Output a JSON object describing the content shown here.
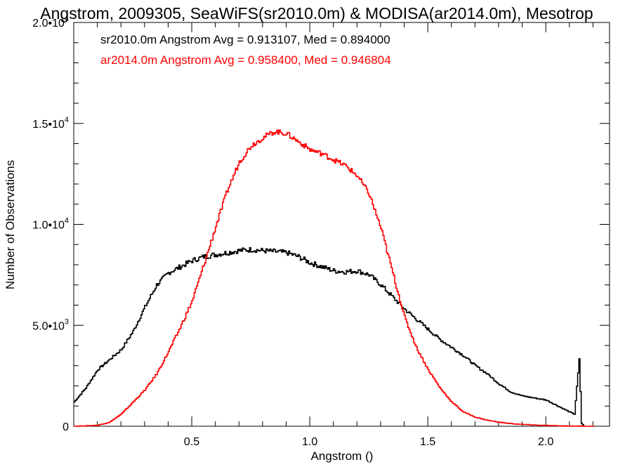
{
  "chart_data": {
    "type": "line",
    "title": "Angstrom, 2009305, SeaWiFS(sr2010.0m) & MODISA(ar2014.0m), Mesotrop",
    "xlabel": "Angstrom ()",
    "ylabel": "Number of Observations",
    "xlim": [
      0.0,
      2.27
    ],
    "ylim": [
      0,
      20000
    ],
    "x_ticks": [
      {
        "value": 0.5,
        "label": "0.5"
      },
      {
        "value": 1.0,
        "label": "1.0"
      },
      {
        "value": 1.5,
        "label": "1.5"
      },
      {
        "value": 2.0,
        "label": "2.0"
      }
    ],
    "y_ticks": [
      {
        "value": 0,
        "mant": "0",
        "exp": ""
      },
      {
        "value": 5000,
        "mant": "5.0•10",
        "exp": "3"
      },
      {
        "value": 10000,
        "mant": "1.0•10",
        "exp": "4"
      },
      {
        "value": 15000,
        "mant": "1.5•10",
        "exp": "4"
      },
      {
        "value": 20000,
        "mant": "2.0•10",
        "exp": "4"
      }
    ],
    "legend_placement": "top-left",
    "grid": false,
    "series": [
      {
        "legend": "sr2010.0m Angstrom Avg = 0.913107, Med = 0.894000",
        "color": "#000000",
        "points": [
          [
            0.0,
            1200
          ],
          [
            0.05,
            1900
          ],
          [
            0.1,
            2800
          ],
          [
            0.15,
            3300
          ],
          [
            0.2,
            3800
          ],
          [
            0.25,
            4700
          ],
          [
            0.3,
            5900
          ],
          [
            0.35,
            7000
          ],
          [
            0.4,
            7600
          ],
          [
            0.45,
            7900
          ],
          [
            0.5,
            8200
          ],
          [
            0.55,
            8400
          ],
          [
            0.6,
            8500
          ],
          [
            0.65,
            8600
          ],
          [
            0.7,
            8700
          ],
          [
            0.75,
            8750
          ],
          [
            0.8,
            8700
          ],
          [
            0.85,
            8650
          ],
          [
            0.9,
            8600
          ],
          [
            0.95,
            8400
          ],
          [
            1.0,
            8100
          ],
          [
            1.05,
            7900
          ],
          [
            1.1,
            7700
          ],
          [
            1.15,
            7650
          ],
          [
            1.2,
            7700
          ],
          [
            1.25,
            7500
          ],
          [
            1.3,
            7000
          ],
          [
            1.35,
            6400
          ],
          [
            1.4,
            5800
          ],
          [
            1.45,
            5300
          ],
          [
            1.5,
            4800
          ],
          [
            1.55,
            4300
          ],
          [
            1.6,
            3900
          ],
          [
            1.65,
            3500
          ],
          [
            1.7,
            3000
          ],
          [
            1.75,
            2600
          ],
          [
            1.8,
            2100
          ],
          [
            1.85,
            1700
          ],
          [
            1.9,
            1500
          ],
          [
            1.95,
            1400
          ],
          [
            2.0,
            1300
          ],
          [
            2.05,
            1000
          ],
          [
            2.1,
            700
          ],
          [
            2.12,
            600
          ],
          [
            2.14,
            3300
          ],
          [
            2.15,
            150
          ],
          [
            2.16,
            0
          ]
        ]
      },
      {
        "legend": "ar2014.0m Angstrom Avg = 0.958400, Med = 0.946804",
        "color": "#ff0000",
        "points": [
          [
            0.0,
            0
          ],
          [
            0.05,
            20
          ],
          [
            0.1,
            50
          ],
          [
            0.15,
            200
          ],
          [
            0.2,
            600
          ],
          [
            0.25,
            1200
          ],
          [
            0.3,
            1800
          ],
          [
            0.35,
            2600
          ],
          [
            0.4,
            3700
          ],
          [
            0.45,
            4900
          ],
          [
            0.5,
            6200
          ],
          [
            0.55,
            8000
          ],
          [
            0.6,
            9900
          ],
          [
            0.65,
            11700
          ],
          [
            0.7,
            13100
          ],
          [
            0.75,
            13900
          ],
          [
            0.8,
            14300
          ],
          [
            0.85,
            14600
          ],
          [
            0.9,
            14500
          ],
          [
            0.95,
            14100
          ],
          [
            1.0,
            13700
          ],
          [
            1.05,
            13500
          ],
          [
            1.1,
            13200
          ],
          [
            1.15,
            12900
          ],
          [
            1.2,
            12400
          ],
          [
            1.25,
            11500
          ],
          [
            1.3,
            9800
          ],
          [
            1.35,
            7600
          ],
          [
            1.4,
            5400
          ],
          [
            1.45,
            3900
          ],
          [
            1.5,
            2800
          ],
          [
            1.55,
            1900
          ],
          [
            1.6,
            1200
          ],
          [
            1.65,
            700
          ],
          [
            1.7,
            450
          ],
          [
            1.75,
            300
          ],
          [
            1.8,
            200
          ],
          [
            1.85,
            130
          ],
          [
            1.9,
            90
          ],
          [
            1.95,
            60
          ],
          [
            2.0,
            40
          ],
          [
            2.05,
            20
          ],
          [
            2.1,
            10
          ],
          [
            2.15,
            5
          ],
          [
            2.2,
            0
          ]
        ]
      }
    ]
  }
}
